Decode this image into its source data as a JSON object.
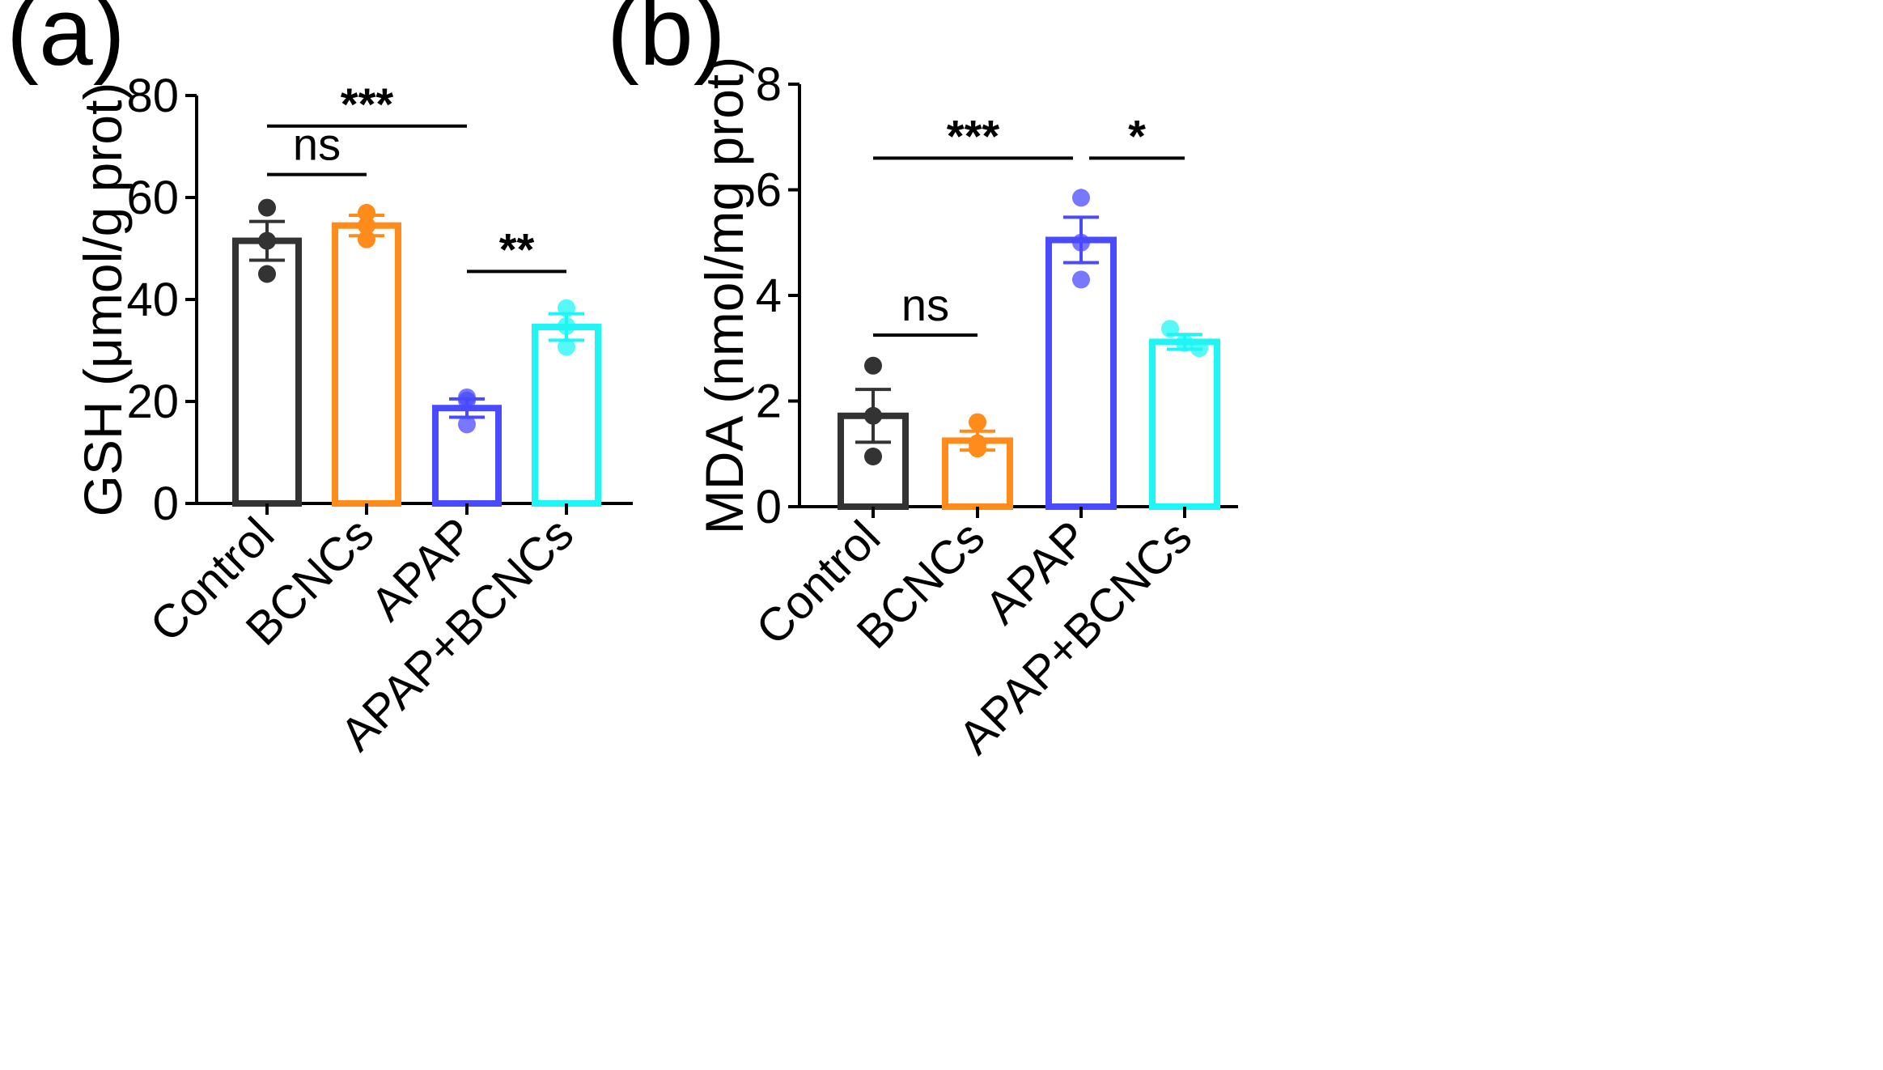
{
  "chart_data": [
    {
      "panel": "(a)",
      "type": "bar",
      "title": "",
      "xlabel": "",
      "ylabel": "GSH (μmol/g prot)",
      "ylim": [
        0,
        80
      ],
      "yticks": [
        0,
        20,
        40,
        60,
        80
      ],
      "categories": [
        "Control",
        "BCNCs",
        "APAP",
        "APAP+BCNCs"
      ],
      "colors": [
        "#333333",
        "#ff8c1a",
        "#4a4aff",
        "#1ff5f5"
      ],
      "values": [
        51.5,
        54.5,
        18.7,
        34.6
      ],
      "errors": [
        3.8,
        2.0,
        1.8,
        2.6
      ],
      "points": [
        [
          58,
          51.5,
          45
        ],
        [
          57,
          54.5,
          51.8
        ],
        [
          20.8,
          20.2,
          15.5
        ],
        [
          38.3,
          34.8,
          30.7
        ]
      ],
      "significance": [
        {
          "from": 0,
          "to": 1,
          "y": 64.5,
          "label": "ns"
        },
        {
          "from": 0,
          "to": 2,
          "y": 74,
          "label": "***"
        },
        {
          "from": 2,
          "to": 3,
          "y": 45.5,
          "label": "**"
        }
      ]
    },
    {
      "panel": "(b)",
      "type": "bar",
      "title": "",
      "xlabel": "",
      "ylabel": "MDA (nmol/mg prot)",
      "ylim": [
        0,
        8
      ],
      "yticks": [
        0,
        2,
        4,
        6,
        8
      ],
      "categories": [
        "Control",
        "BCNCs",
        "APAP",
        "APAP+BCNCs"
      ],
      "colors": [
        "#333333",
        "#ff8c1a",
        "#4a4aff",
        "#1ff5f5"
      ],
      "values": [
        1.72,
        1.25,
        5.05,
        3.12
      ],
      "errors": [
        0.5,
        0.18,
        0.43,
        0.14
      ],
      "points": [
        [
          2.67,
          1.72,
          0.95
        ],
        [
          1.6,
          1.2,
          1.1
        ],
        [
          5.85,
          5.0,
          4.3
        ],
        [
          3.37,
          3.1,
          3.0
        ]
      ],
      "significance": [
        {
          "from": 0,
          "to": 1,
          "y": 3.25,
          "label": "ns"
        },
        {
          "from": 0,
          "to": 2,
          "y": 6.6,
          "label": "***"
        },
        {
          "from": 2,
          "to": 3,
          "y": 6.6,
          "label": "*"
        }
      ]
    }
  ]
}
